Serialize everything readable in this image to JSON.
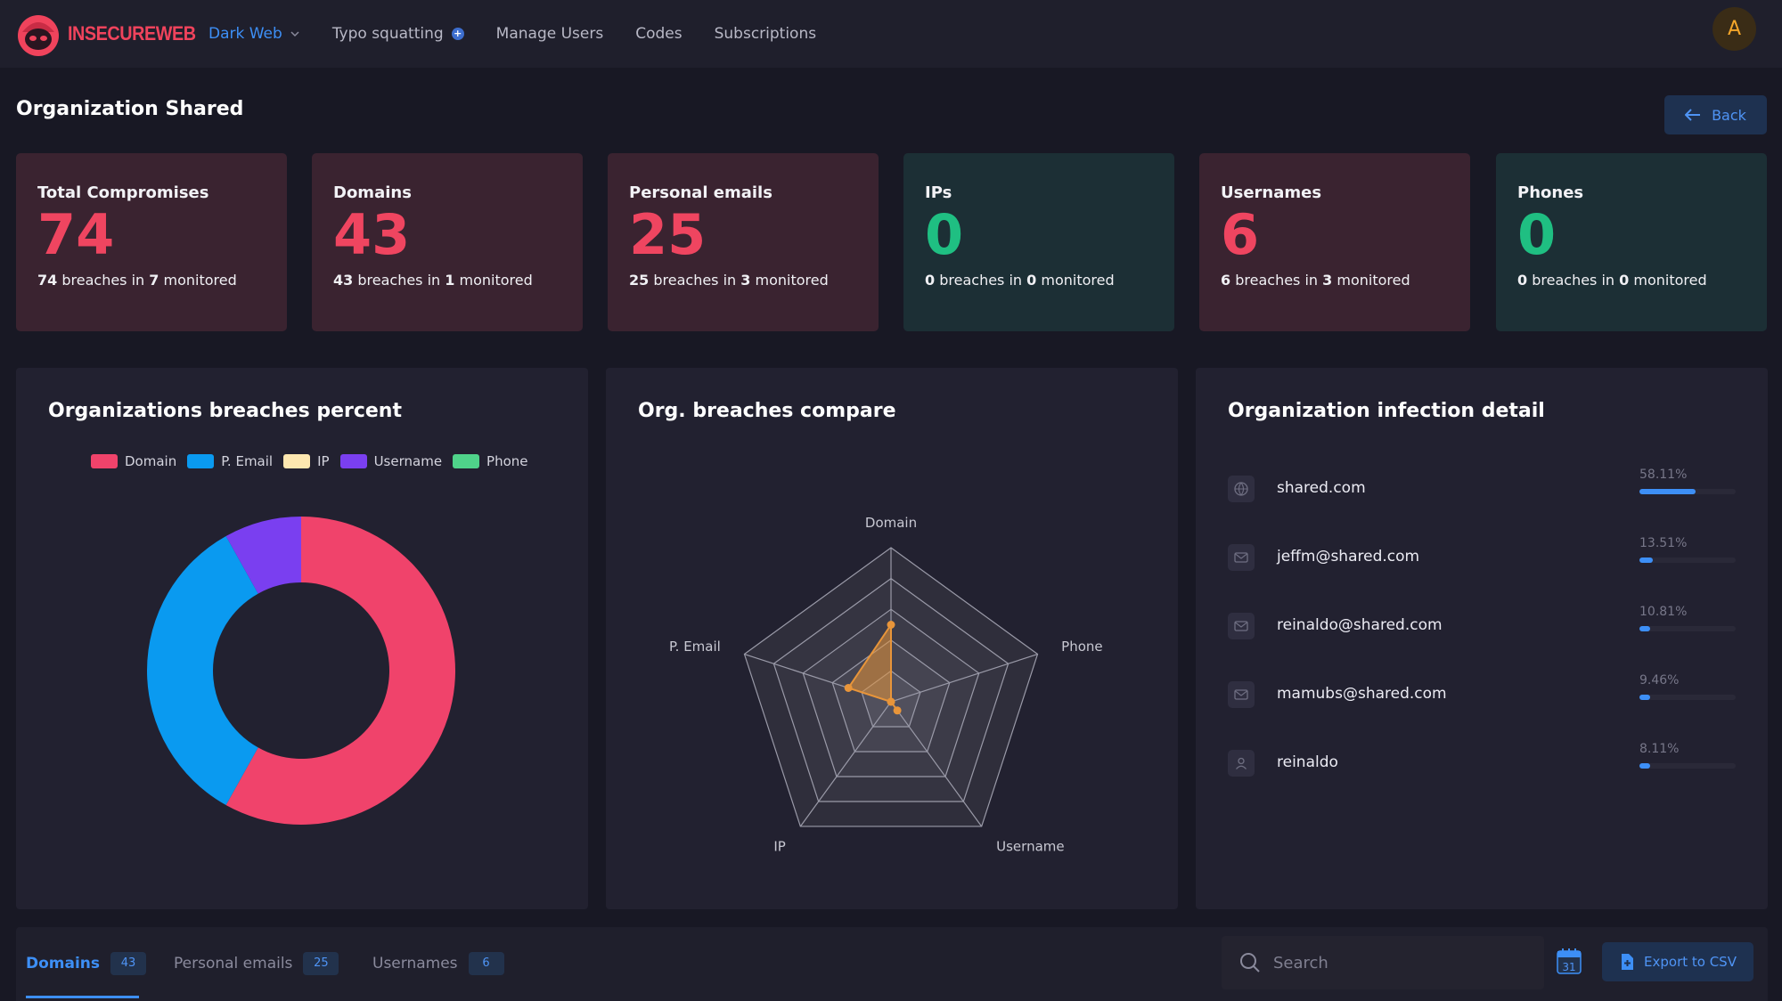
{
  "app": {
    "brand": "INSECUREWEB"
  },
  "nav": {
    "items": [
      {
        "label": "Dark Web",
        "active": true,
        "dropdown": true
      },
      {
        "label": "Typo squatting",
        "badge": "+"
      },
      {
        "label": "Manage Users"
      },
      {
        "label": "Codes"
      },
      {
        "label": "Subscriptions"
      }
    ]
  },
  "user": {
    "avatar_letter": "A"
  },
  "page": {
    "title": "Organization Shared",
    "back_label": "Back"
  },
  "stats": [
    {
      "label": "Total Compromises",
      "value": "74",
      "breaches": "74",
      "monitored": "7",
      "tone": "red"
    },
    {
      "label": "Domains",
      "value": "43",
      "breaches": "43",
      "monitored": "1",
      "tone": "red"
    },
    {
      "label": "Personal emails",
      "value": "25",
      "breaches": "25",
      "monitored": "3",
      "tone": "red"
    },
    {
      "label": "IPs",
      "value": "0",
      "breaches": "0",
      "monitored": "0",
      "tone": "green"
    },
    {
      "label": "Usernames",
      "value": "6",
      "breaches": "6",
      "monitored": "3",
      "tone": "red"
    },
    {
      "label": "Phones",
      "value": "0",
      "breaches": "0",
      "monitored": "0",
      "tone": "green"
    }
  ],
  "stat_text": {
    "breaches_in": "breaches in",
    "monitored": "monitored"
  },
  "panels": {
    "donut_title": "Organizations breaches percent",
    "radar_title": "Org. breaches compare",
    "infection_title": "Organization infection detail"
  },
  "colors": {
    "domain": "#f0436b",
    "p_email": "#0a9af0",
    "ip": "#fde7b0",
    "username": "#7a3ff0",
    "phone": "#4fd38a",
    "accent": "#3d8ff6",
    "radar_fill": "#e8953a"
  },
  "chart_data": [
    {
      "type": "pie",
      "title": "Organizations breaches percent",
      "categories": [
        "Domain",
        "P. Email",
        "IP",
        "Username",
        "Phone"
      ],
      "values": [
        43,
        25,
        0,
        6,
        0
      ],
      "legend_position": "top"
    },
    {
      "type": "radar",
      "title": "Org. breaches compare",
      "categories": [
        "Domain",
        "Phone",
        "Username",
        "IP",
        "P. Email"
      ],
      "values": [
        43,
        0,
        6,
        0,
        25
      ],
      "rmax": 86,
      "rings": 5
    }
  ],
  "infection": {
    "items": [
      {
        "name": "shared.com",
        "pct": "58.11%",
        "ratio": 0.5811,
        "icon": "globe-icon"
      },
      {
        "name": "jeffm@shared.com",
        "pct": "13.51%",
        "ratio": 0.1351,
        "icon": "mail-icon"
      },
      {
        "name": "reinaldo@shared.com",
        "pct": "10.81%",
        "ratio": 0.1081,
        "icon": "mail-icon"
      },
      {
        "name": "mamubs@shared.com",
        "pct": "9.46%",
        "ratio": 0.0946,
        "icon": "mail-icon"
      },
      {
        "name": "reinaldo",
        "pct": "8.11%",
        "ratio": 0.0811,
        "icon": "user-icon"
      }
    ]
  },
  "bottom": {
    "tabs": [
      {
        "label": "Domains",
        "count": "43",
        "active": true
      },
      {
        "label": "Personal emails",
        "count": "25"
      },
      {
        "label": "Usernames",
        "count": "6"
      }
    ],
    "search_placeholder": "Search",
    "calendar_day": "31",
    "export_label": "Export to CSV"
  }
}
